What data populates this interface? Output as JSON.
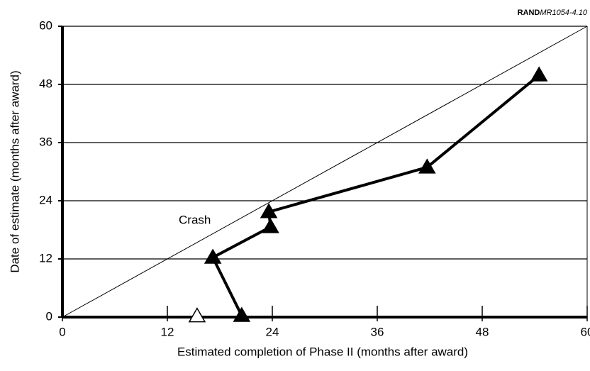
{
  "chart_data": {
    "type": "line",
    "source": {
      "bold": "RAND",
      "italic": "MR1054-4.10"
    },
    "xlabel": "Estimated completion of Phase II (months after award)",
    "ylabel": "Date of estimate (months after award)",
    "annotation": "Crash",
    "xlim": [
      0,
      60
    ],
    "xticks": [
      0,
      12,
      24,
      36,
      48,
      60
    ],
    "ylim": [
      0,
      60
    ],
    "yticks": [
      0,
      12,
      24,
      36,
      48,
      60
    ],
    "grid": true,
    "series": [
      {
        "color": "#000000",
        "marker": "filled-triangle",
        "line": true,
        "x": [
          20.5,
          17.2,
          23.8,
          23.6,
          41.7,
          54.5
        ],
        "values": [
          0.3,
          12.3,
          18.6,
          21.7,
          30.9,
          49.9
        ]
      },
      {
        "color": "#000000",
        "marker": "open-triangle",
        "line": false,
        "x": [
          15.4
        ],
        "values": [
          0.2
        ]
      }
    ]
  }
}
